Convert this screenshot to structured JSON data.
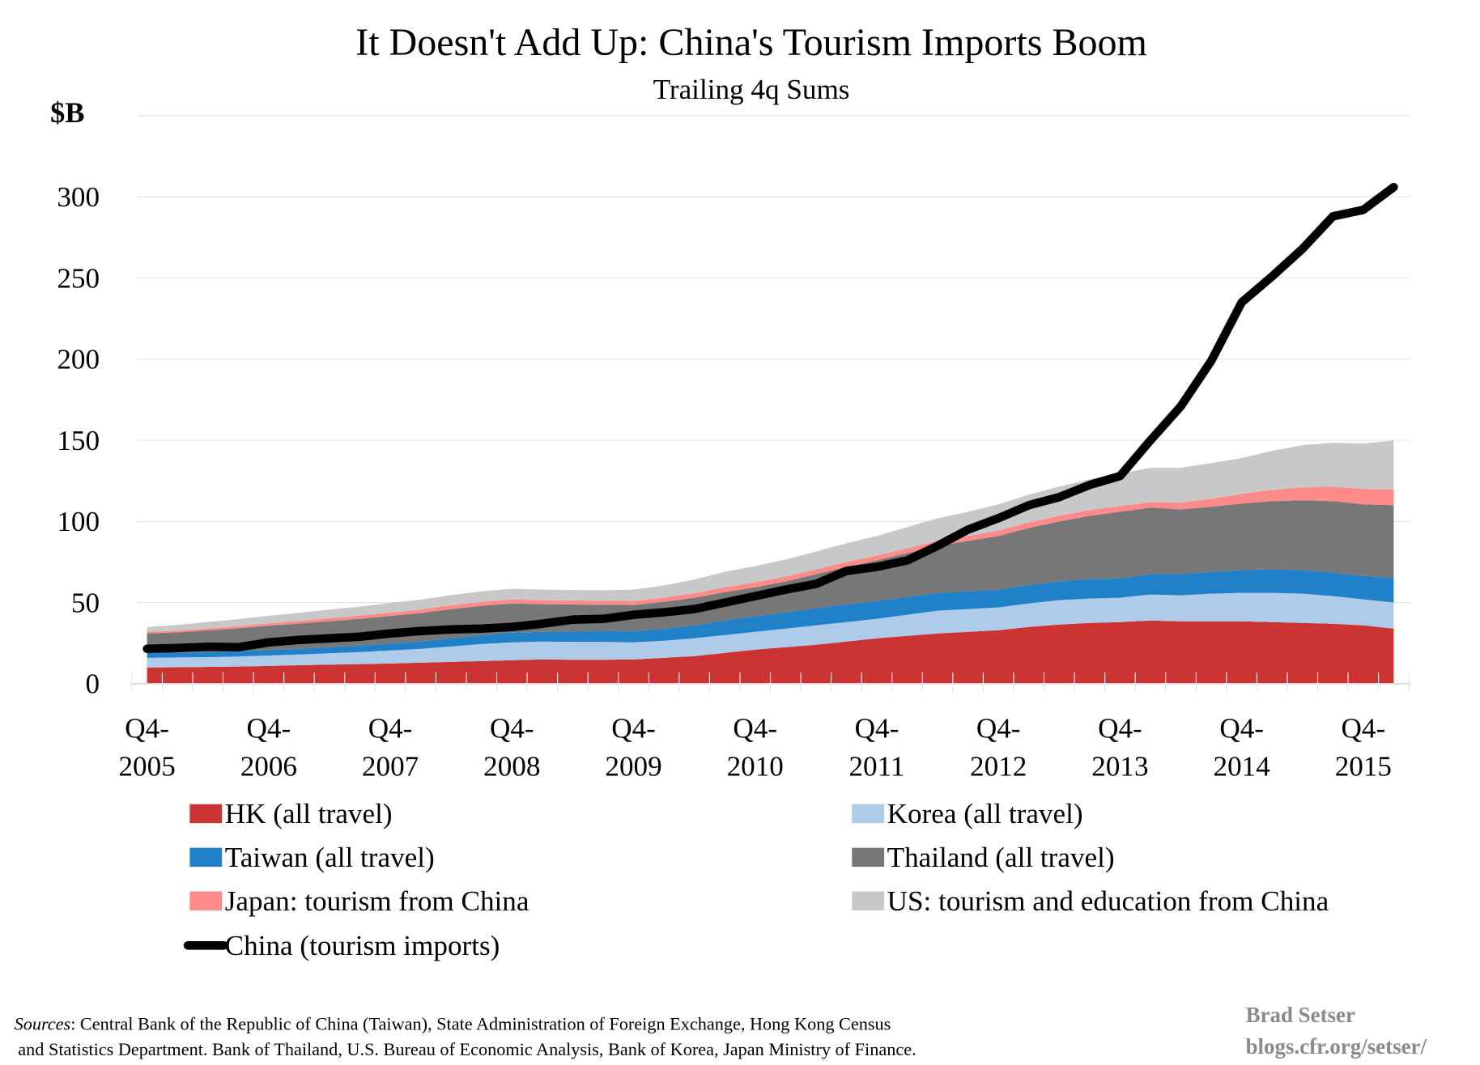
{
  "chart_data": {
    "type": "area",
    "stacked": true,
    "title": "It Doesn't Add Up: China's Tourism Imports Boom",
    "subtitle": "Trailing 4q Sums",
    "ylabel": "$B",
    "ylim": [
      0,
      350
    ],
    "yticks": [
      "0",
      "50",
      "100",
      "150",
      "200",
      "250",
      "300"
    ],
    "ytick_values": [
      0,
      50,
      100,
      150,
      200,
      250,
      300
    ],
    "grid": true,
    "legend_position": "bottom",
    "x_start": "Q4-2005",
    "x_end": "Q1-2016",
    "x_frequency": "quarterly",
    "xtick_labels": [
      {
        "q": "Q4-",
        "year": "2005",
        "index": 0
      },
      {
        "q": "Q4-",
        "year": "2006",
        "index": 4
      },
      {
        "q": "Q4-",
        "year": "2007",
        "index": 8
      },
      {
        "q": "Q4-",
        "year": "2008",
        "index": 12
      },
      {
        "q": "Q4-",
        "year": "2009",
        "index": 16
      },
      {
        "q": "Q4-",
        "year": "2010",
        "index": 20
      },
      {
        "q": "Q4-",
        "year": "2011",
        "index": 24
      },
      {
        "q": "Q4-",
        "year": "2012",
        "index": 28
      },
      {
        "q": "Q4-",
        "year": "2013",
        "index": 32
      },
      {
        "q": "Q4-",
        "year": "2014",
        "index": 36
      },
      {
        "q": "Q4-",
        "year": "2015",
        "index": 40
      }
    ],
    "series": [
      {
        "name": "HK (all travel)",
        "kind": "area",
        "color": "#cc3333",
        "values": [
          10,
          10.2,
          10.4,
          10.6,
          11,
          11.4,
          11.8,
          12.1,
          12.5,
          13,
          13.5,
          14,
          14.5,
          15,
          14.8,
          14.8,
          15,
          16,
          17,
          19,
          21,
          22.5,
          24,
          26,
          28,
          29.5,
          31,
          32,
          33,
          35,
          36.5,
          37.5,
          38,
          39,
          38.5,
          38.5,
          38.5,
          38,
          37.5,
          37,
          36,
          34
        ]
      },
      {
        "name": "Korea (all travel)",
        "kind": "area",
        "color": "#aecbea",
        "values": [
          6,
          6,
          6,
          6.2,
          6.4,
          6.6,
          7,
          7.4,
          8,
          8.5,
          9.5,
          10.5,
          11,
          11,
          11,
          11,
          10.5,
          10.5,
          11,
          11,
          11,
          11.5,
          12,
          12,
          12,
          13,
          14,
          14,
          14,
          14.5,
          15,
          15,
          15,
          16,
          16,
          17,
          17.5,
          18,
          18,
          17,
          16,
          16
        ]
      },
      {
        "name": "Taiwan (all travel)",
        "kind": "area",
        "color": "#2080c8",
        "values": [
          3,
          3,
          3,
          3.2,
          3.4,
          3.6,
          3.8,
          4,
          4.3,
          4.6,
          5,
          5.5,
          6,
          6,
          6.5,
          6.8,
          7,
          7.5,
          8,
          9,
          9.5,
          10,
          10.5,
          11,
          11,
          11,
          11,
          11,
          11,
          11.5,
          11.5,
          12,
          12,
          12.5,
          13,
          13.5,
          14,
          14.5,
          14.5,
          14.5,
          14.5,
          15
        ]
      },
      {
        "name": "Thailand (all travel)",
        "kind": "area",
        "color": "#777777",
        "values": [
          12,
          12.5,
          13.5,
          14.2,
          15,
          15.5,
          16,
          16.5,
          17,
          17.5,
          18,
          18,
          18,
          17,
          16.5,
          16,
          16,
          16.5,
          17,
          17.5,
          18,
          19,
          21,
          23,
          25,
          27,
          29,
          31,
          33,
          35,
          37,
          39,
          41,
          41,
          40,
          40,
          41,
          42,
          43,
          44,
          44,
          45
        ]
      },
      {
        "name": "Japan: tourism from China",
        "kind": "area",
        "color": "#ff8a8a",
        "values": [
          1,
          1,
          1.2,
          1.3,
          1.5,
          1.6,
          1.8,
          2,
          2,
          2.2,
          2.4,
          2.5,
          2.5,
          2.5,
          2.5,
          2.5,
          2.5,
          2.6,
          2.8,
          3,
          3,
          3,
          3,
          3,
          3,
          3,
          3,
          3,
          3.5,
          3.5,
          3.5,
          3.5,
          3.5,
          3.5,
          4,
          5,
          6,
          7,
          8,
          9,
          9.5,
          10
        ]
      },
      {
        "name": "US: tourism and education from China",
        "kind": "area",
        "color": "#c8c8c8",
        "values": [
          3,
          3.5,
          4,
          4.3,
          4.6,
          5,
          5.3,
          5.6,
          6,
          6,
          6.2,
          6.5,
          6.5,
          6.5,
          6.5,
          6.5,
          7,
          7.5,
          8.5,
          9.5,
          10,
          10.5,
          11,
          11.5,
          12,
          13,
          14,
          15,
          16,
          17,
          18,
          19,
          20,
          21,
          21.5,
          22,
          22,
          24,
          26,
          27,
          28,
          30
        ]
      },
      {
        "name": "China (tourism imports)",
        "kind": "line",
        "color": "#000000",
        "values": [
          21.5,
          22,
          22.8,
          22.5,
          25.5,
          27,
          28,
          29,
          31,
          32.5,
          33.5,
          34,
          35,
          37,
          39.5,
          40,
          42.5,
          44,
          46,
          50,
          54,
          58,
          61.5,
          69.5,
          72,
          76,
          85,
          95,
          102,
          110,
          115,
          122.5,
          128,
          150,
          171,
          199,
          235,
          251,
          268,
          288,
          292,
          306
        ]
      }
    ]
  },
  "legend": {
    "items": [
      {
        "label": "HK (all travel)",
        "color": "#cc3333"
      },
      {
        "label": "Korea (all travel)",
        "color": "#aecbea"
      },
      {
        "label": "Taiwan (all travel)",
        "color": "#2080c8"
      },
      {
        "label": "Thailand (all travel)",
        "color": "#777777"
      },
      {
        "label": "Japan: tourism from China",
        "color": "#ff8a8a"
      },
      {
        "label": "US: tourism and education from China",
        "color": "#c8c8c8"
      },
      {
        "label": "China (tourism imports)",
        "color": "#000000"
      }
    ]
  },
  "footer": {
    "sources_label": "Sources",
    "sources_line1": ": Central Bank of the Republic of China (Taiwan), State Administration of Foreign Exchange, Hong Kong Census",
    "sources_line2": "and Statistics Department. Bank of Thailand, U.S. Bureau of Economic Analysis, Bank of Korea, Japan Ministry of Finance.",
    "author": "Brad Setser",
    "site": "blogs.cfr.org/setser/"
  }
}
